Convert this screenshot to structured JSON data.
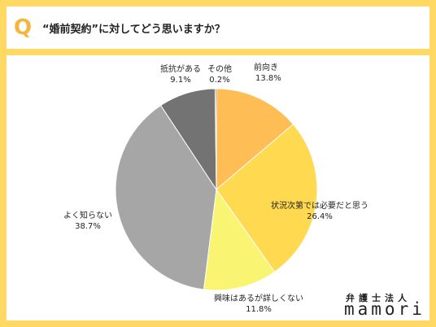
{
  "header": {
    "q_mark": "Q",
    "question": "“婚前契約”に対してどう思いますか？"
  },
  "brand": {
    "small": "弁護士法人",
    "name": "mamori"
  },
  "colors": {
    "background": "#ffd964",
    "q_mark": "#f5b53d"
  },
  "chart_data": {
    "type": "pie",
    "start": "12 o'clock, clockwise",
    "categories": [
      "前向き",
      "状況次第では必要だと思う",
      "興味はあるが詳しくない",
      "よく知らない",
      "抵抗がある",
      "その他"
    ],
    "values": [
      13.8,
      26.4,
      11.8,
      38.7,
      9.1,
      0.2
    ],
    "value_labels": [
      "13.8%",
      "26.4%",
      "11.8%",
      "38.7%",
      "9.1%",
      "0.2%"
    ],
    "colors": [
      "#ffbe55",
      "#ffd94f",
      "#f9f573",
      "#a6a6a6",
      "#737373",
      "#4f4f4f"
    ]
  }
}
